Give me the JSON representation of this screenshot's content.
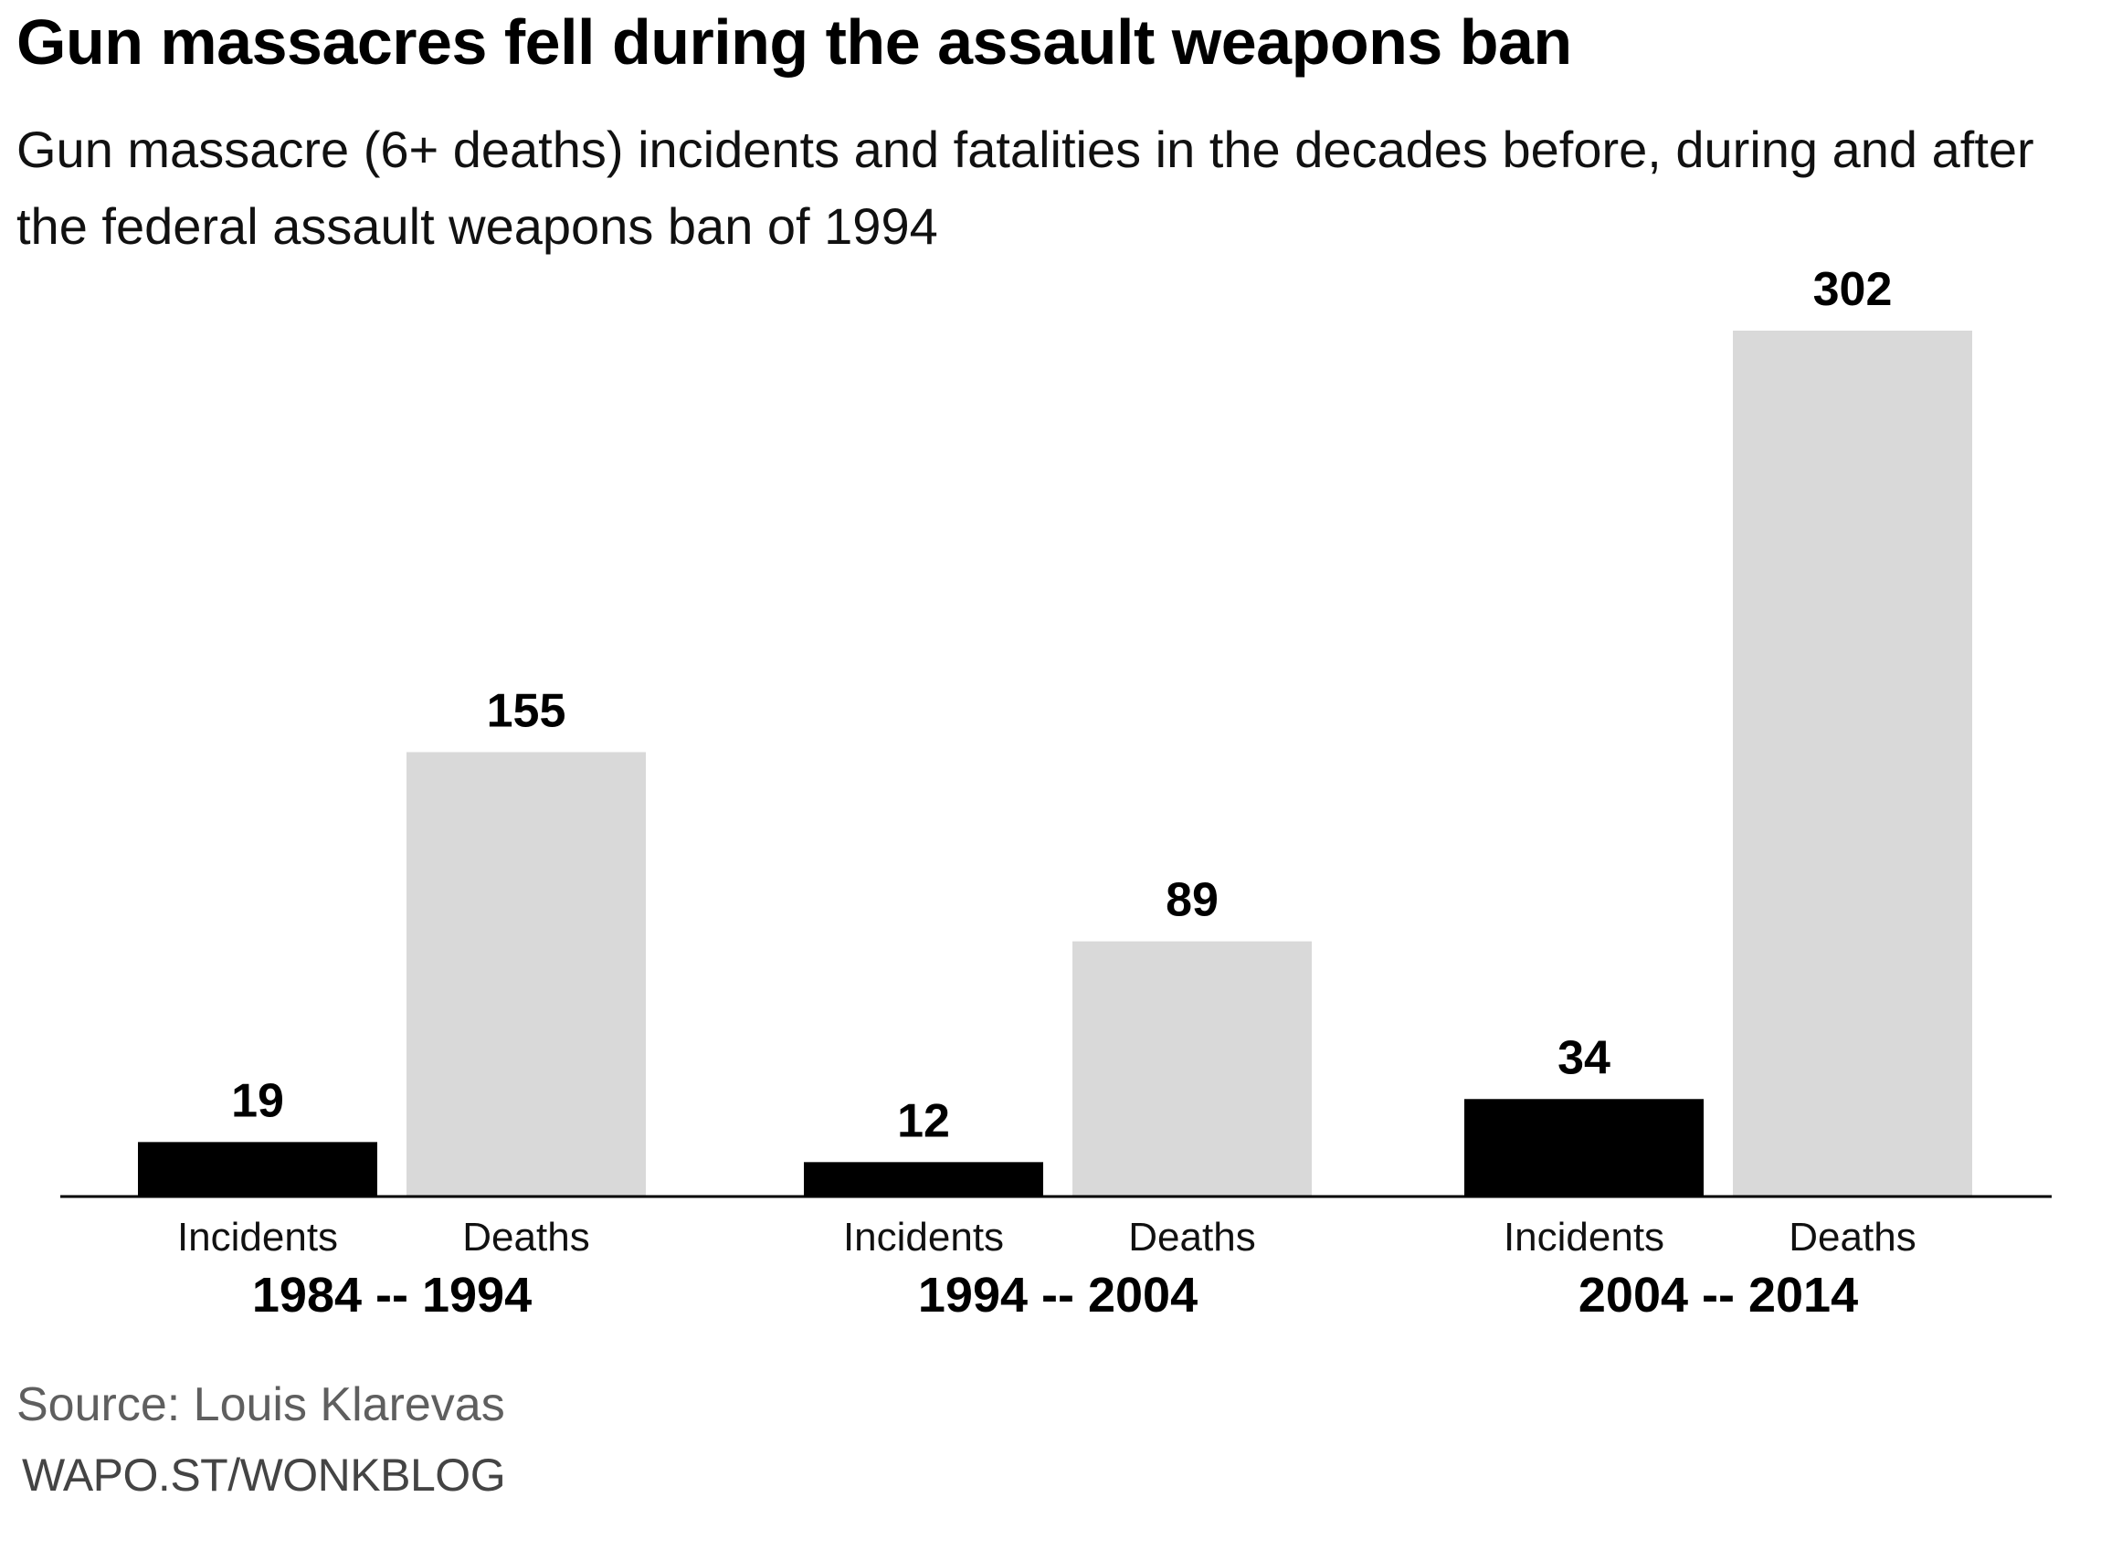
{
  "title": "Gun massacres fell during the assault weapons ban",
  "subtitle": "Gun massacre (6+ deaths) incidents and fatalities in the decades before, during and after the federal assault weapons ban of 1994",
  "source": "Source: Louis Klarevas",
  "credit": "WAPO.ST/WONKBLOG",
  "chart_data": {
    "type": "bar",
    "categories": [
      "1984 -- 1994",
      "1994 -- 2004",
      "2004 -- 2014"
    ],
    "series": [
      {
        "name": "Incidents",
        "values": [
          19,
          12,
          34
        ],
        "color": "#000000"
      },
      {
        "name": "Deaths",
        "values": [
          155,
          89,
          302
        ],
        "color": "#d9d9d9"
      }
    ],
    "ylim": [
      0,
      302
    ],
    "grid": false,
    "legend": "none",
    "data_labels": true
  }
}
